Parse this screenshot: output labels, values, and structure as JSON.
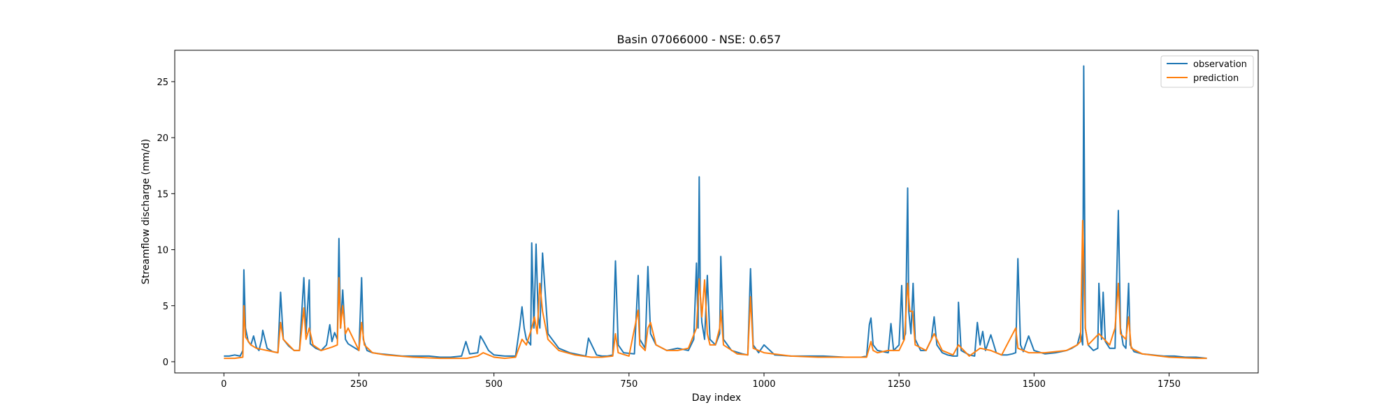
{
  "chart_data": {
    "type": "line",
    "title": "Basin 07066000 - NSE: 0.657",
    "xlabel": "Day index",
    "ylabel": "Streamflow discharge (mm/d)",
    "xlim": [
      -91,
      1915
    ],
    "ylim": [
      -1.0,
      27.8
    ],
    "xticks": [
      0,
      250,
      500,
      750,
      1000,
      1250,
      1500,
      1750
    ],
    "yticks": [
      0,
      5,
      10,
      15,
      20,
      25
    ],
    "legend": "top-right",
    "grid": false,
    "series": [
      {
        "name": "observation",
        "color": "#1f77b4",
        "x": [
          0,
          10,
          20,
          30,
          35,
          37,
          40,
          45,
          50,
          55,
          60,
          65,
          70,
          72,
          80,
          90,
          100,
          105,
          110,
          120,
          130,
          140,
          148,
          152,
          158,
          160,
          170,
          180,
          190,
          196,
          200,
          205,
          210,
          213,
          216,
          220,
          225,
          230,
          240,
          250,
          255,
          258,
          265,
          275,
          290,
          310,
          330,
          350,
          380,
          400,
          420,
          440,
          448,
          455,
          470,
          475,
          480,
          490,
          500,
          520,
          540,
          548,
          552,
          556,
          560,
          568,
          570,
          574,
          578,
          582,
          585,
          590,
          600,
          620,
          640,
          660,
          670,
          675,
          690,
          700,
          710,
          720,
          725,
          730,
          740,
          760,
          767,
          770,
          780,
          785,
          790,
          800,
          820,
          840,
          860,
          870,
          875,
          878,
          880,
          882,
          885,
          890,
          895,
          900,
          910,
          918,
          920,
          925,
          940,
          960,
          970,
          975,
          980,
          990,
          1000,
          1020,
          1050,
          1080,
          1110,
          1150,
          1180,
          1190,
          1195,
          1198,
          1202,
          1210,
          1230,
          1235,
          1240,
          1250,
          1255,
          1258,
          1262,
          1266,
          1268,
          1272,
          1276,
          1280,
          1290,
          1300,
          1310,
          1315,
          1320,
          1330,
          1340,
          1350,
          1358,
          1360,
          1365,
          1380,
          1390,
          1395,
          1400,
          1405,
          1410,
          1420,
          1430,
          1440,
          1450,
          1460,
          1466,
          1470,
          1475,
          1480,
          1490,
          1500,
          1520,
          1540,
          1560,
          1570,
          1580,
          1586,
          1590,
          1592,
          1595,
          1600,
          1610,
          1618,
          1620,
          1625,
          1628,
          1632,
          1640,
          1650,
          1656,
          1660,
          1665,
          1670,
          1675,
          1678,
          1685,
          1700,
          1720,
          1740,
          1760,
          1780,
          1800,
          1820
        ],
        "values": [
          0.5,
          0.5,
          0.6,
          0.5,
          1.0,
          8.2,
          3.0,
          1.8,
          1.5,
          2.3,
          1.3,
          1.0,
          2.0,
          2.8,
          1.2,
          0.9,
          0.8,
          6.2,
          2.0,
          1.4,
          1.0,
          1.0,
          7.5,
          2.5,
          7.3,
          1.6,
          1.2,
          1.0,
          1.5,
          3.3,
          1.8,
          2.6,
          2.0,
          11.0,
          3.0,
          6.4,
          2.0,
          1.6,
          1.3,
          1.0,
          7.5,
          2.0,
          1.0,
          0.8,
          0.7,
          0.6,
          0.5,
          0.5,
          0.5,
          0.4,
          0.4,
          0.5,
          1.8,
          0.7,
          0.8,
          2.3,
          1.9,
          1.0,
          0.6,
          0.5,
          0.5,
          3.2,
          4.9,
          3.0,
          2.0,
          1.5,
          10.6,
          3.0,
          10.5,
          4.0,
          3.0,
          9.7,
          2.5,
          1.2,
          0.8,
          0.6,
          0.5,
          2.1,
          0.6,
          0.5,
          0.5,
          0.6,
          9.0,
          1.5,
          0.8,
          0.7,
          7.7,
          2.0,
          1.2,
          8.5,
          2.5,
          1.5,
          1.0,
          1.2,
          1.0,
          2.0,
          8.8,
          3.0,
          16.5,
          6.0,
          3.5,
          2.0,
          7.7,
          2.0,
          1.5,
          2.5,
          9.4,
          2.0,
          1.0,
          0.7,
          0.6,
          8.3,
          1.5,
          0.8,
          1.5,
          0.6,
          0.5,
          0.5,
          0.5,
          0.4,
          0.4,
          0.5,
          3.3,
          3.9,
          1.5,
          1.0,
          0.8,
          3.4,
          1.0,
          1.5,
          6.8,
          2.0,
          2.5,
          15.5,
          4.5,
          2.5,
          7.0,
          2.0,
          1.0,
          1.0,
          2.0,
          4.0,
          1.5,
          0.8,
          0.6,
          0.5,
          0.5,
          5.3,
          1.0,
          0.6,
          0.5,
          3.5,
          1.5,
          2.7,
          1.0,
          2.4,
          0.8,
          0.6,
          0.6,
          0.7,
          0.8,
          9.2,
          1.5,
          0.9,
          2.3,
          1.0,
          0.7,
          0.8,
          1.0,
          1.2,
          1.5,
          2.6,
          1.5,
          26.4,
          3.0,
          1.5,
          1.0,
          1.2,
          7.0,
          2.0,
          6.2,
          1.8,
          1.2,
          1.2,
          13.5,
          3.0,
          1.5,
          1.2,
          7.0,
          1.5,
          0.9,
          0.7,
          0.6,
          0.5,
          0.5,
          0.4,
          0.4,
          0.3
        ]
      },
      {
        "name": "prediction",
        "color": "#ff7f0e",
        "x": [
          0,
          20,
          35,
          37,
          40,
          50,
          60,
          80,
          100,
          105,
          110,
          120,
          130,
          140,
          148,
          152,
          158,
          165,
          180,
          200,
          210,
          213,
          216,
          220,
          225,
          230,
          240,
          250,
          255,
          260,
          275,
          300,
          350,
          400,
          450,
          470,
          480,
          500,
          520,
          540,
          552,
          560,
          570,
          575,
          580,
          585,
          590,
          600,
          620,
          650,
          680,
          700,
          720,
          725,
          730,
          750,
          767,
          770,
          780,
          785,
          790,
          800,
          820,
          840,
          860,
          875,
          880,
          885,
          890,
          895,
          900,
          910,
          918,
          920,
          925,
          950,
          970,
          975,
          980,
          1000,
          1050,
          1100,
          1150,
          1190,
          1198,
          1202,
          1210,
          1230,
          1250,
          1260,
          1266,
          1270,
          1275,
          1280,
          1300,
          1315,
          1330,
          1350,
          1360,
          1380,
          1400,
          1420,
          1440,
          1466,
          1470,
          1490,
          1520,
          1560,
          1580,
          1586,
          1590,
          1595,
          1600,
          1620,
          1640,
          1650,
          1656,
          1660,
          1670,
          1675,
          1680,
          1700,
          1750,
          1800,
          1820
        ],
        "values": [
          0.3,
          0.3,
          0.4,
          5.0,
          2.2,
          1.5,
          1.2,
          1.0,
          0.8,
          3.5,
          2.0,
          1.5,
          1.0,
          1.0,
          4.8,
          2.0,
          3.0,
          1.5,
          1.0,
          1.3,
          1.5,
          7.5,
          3.0,
          5.0,
          2.5,
          3.0,
          2.0,
          1.0,
          3.5,
          1.5,
          0.8,
          0.6,
          0.4,
          0.3,
          0.3,
          0.5,
          0.8,
          0.4,
          0.3,
          0.4,
          2.0,
          1.5,
          3.0,
          4.0,
          2.5,
          7.0,
          4.5,
          2.0,
          1.0,
          0.6,
          0.4,
          0.4,
          0.5,
          2.5,
          0.8,
          0.5,
          4.6,
          1.5,
          1.0,
          3.0,
          3.5,
          1.5,
          1.0,
          1.0,
          1.2,
          3.0,
          7.4,
          4.0,
          7.3,
          2.5,
          1.5,
          1.5,
          3.0,
          4.6,
          1.5,
          0.7,
          0.6,
          5.8,
          1.2,
          0.8,
          0.5,
          0.4,
          0.4,
          0.4,
          1.8,
          1.0,
          0.8,
          1.0,
          1.0,
          2.0,
          7.0,
          4.5,
          4.5,
          1.5,
          1.0,
          2.5,
          1.0,
          0.6,
          1.5,
          0.5,
          1.2,
          1.0,
          0.6,
          3.0,
          1.2,
          0.8,
          0.8,
          1.0,
          1.5,
          1.8,
          12.6,
          3.0,
          1.5,
          2.5,
          1.5,
          3.0,
          7.0,
          2.5,
          2.0,
          4.0,
          1.2,
          0.7,
          0.4,
          0.3,
          0.3
        ]
      }
    ]
  }
}
